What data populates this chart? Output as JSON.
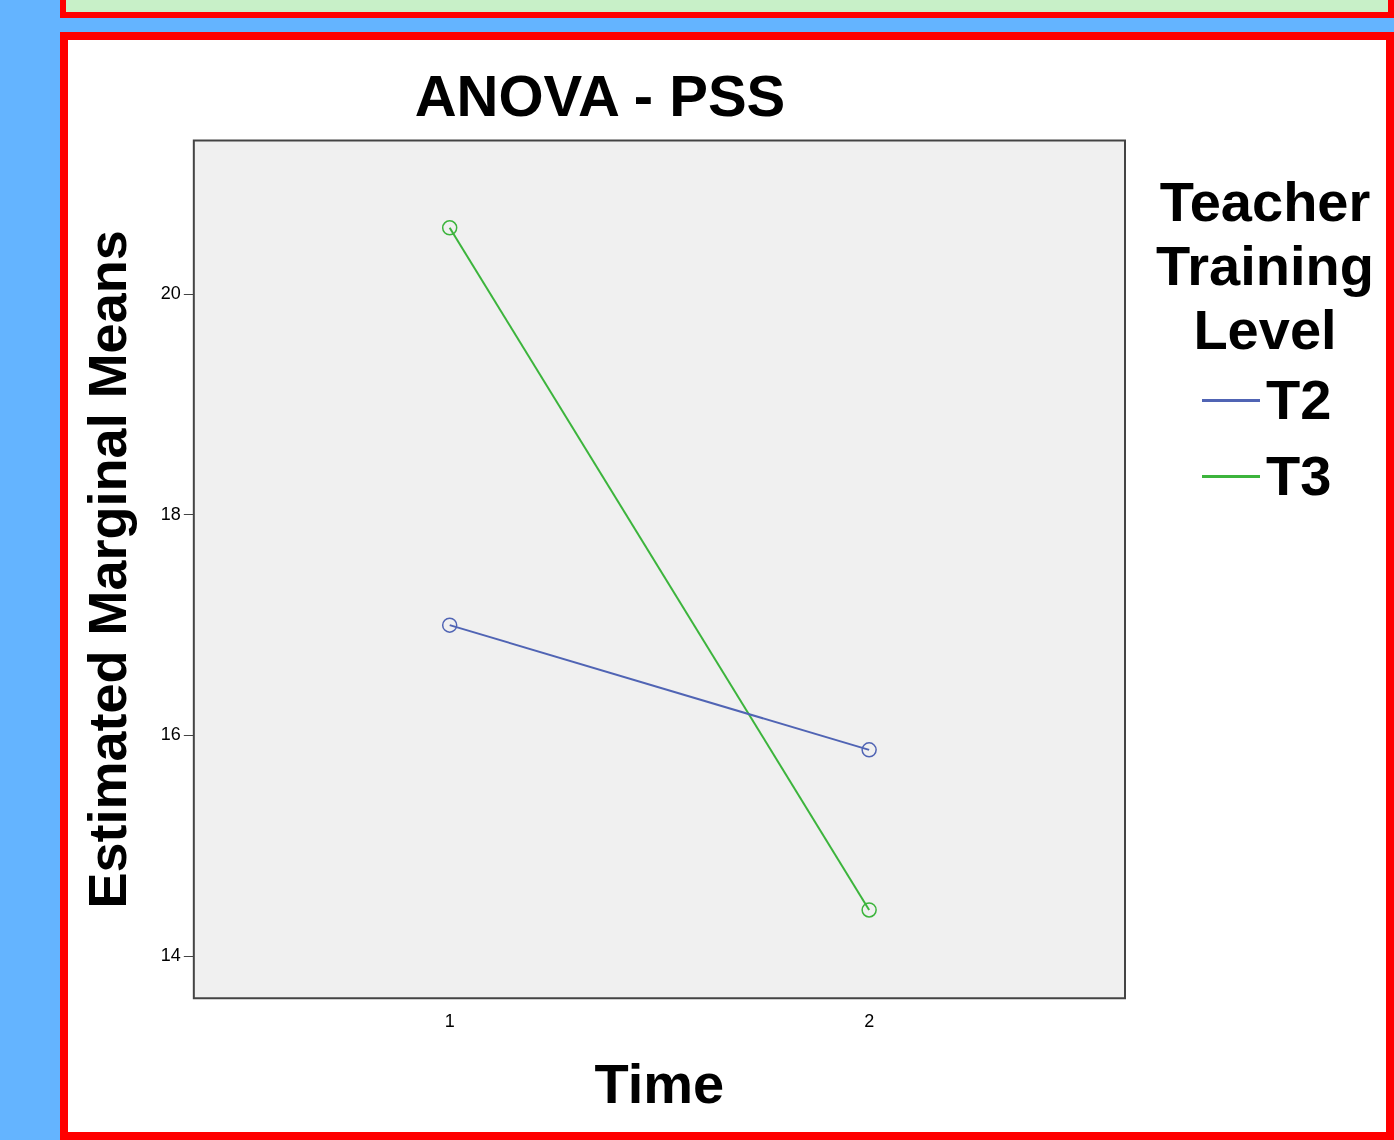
{
  "chart_data": {
    "type": "line",
    "title": "ANOVA - PSS",
    "xlabel": "Time",
    "ylabel": "Estimated Marginal Means",
    "legend_title": "Teacher Training Level",
    "x": [
      1,
      2
    ],
    "xlim": [
      0.39,
      2.61
    ],
    "xticks": [
      1,
      2
    ],
    "ylim": [
      13.62,
      21.39
    ],
    "yticks": [
      14,
      16,
      18,
      20
    ],
    "grid": false,
    "legend": "right",
    "marker": "circle",
    "line_style": "solid",
    "series": [
      {
        "name": "T2",
        "color": "#5064b4",
        "values": [
          17.0,
          15.87
        ]
      },
      {
        "name": "T3",
        "color": "#3cb43c",
        "values": [
          20.6,
          14.42
        ]
      }
    ]
  }
}
